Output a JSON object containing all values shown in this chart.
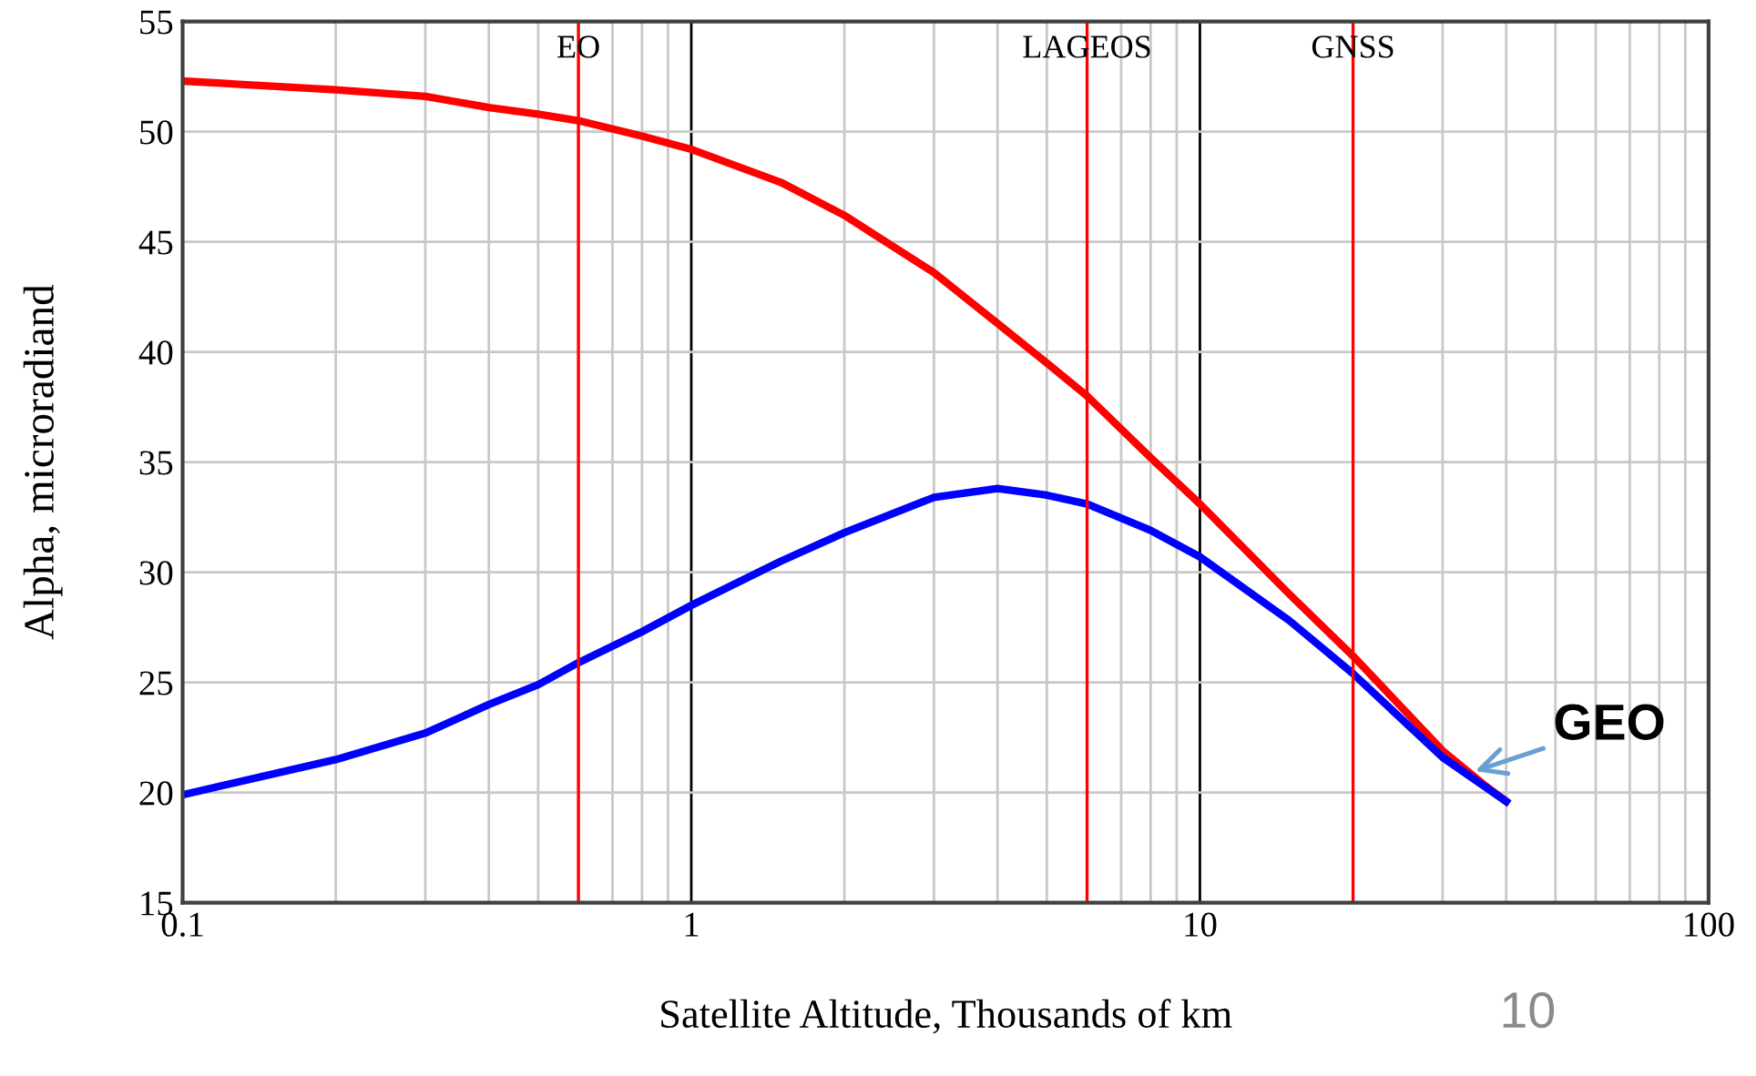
{
  "chart_data": {
    "type": "line",
    "xlabel": "Satellite Altitude, Thousands of km",
    "ylabel": "Alpha, microradiand",
    "log": "x",
    "xlim": [
      0.1,
      100
    ],
    "xticks": [
      0.1,
      1,
      10,
      100
    ],
    "ylim": [
      15,
      55
    ],
    "yticks": [
      15,
      20,
      25,
      30,
      35,
      40,
      45,
      50,
      55
    ],
    "grid": true,
    "legend": false,
    "marker": "none",
    "line_style": "solid",
    "series": [
      {
        "color": "#ff0000",
        "x": [
          0.1,
          0.2,
          0.3,
          0.4,
          0.5,
          0.6,
          0.8,
          1,
          1.5,
          2,
          3,
          4,
          5,
          6,
          8,
          10,
          15,
          20,
          30,
          36,
          40
        ],
        "values": [
          52.3,
          51.9,
          51.6,
          51.1,
          50.8,
          50.5,
          49.8,
          49.2,
          47.7,
          46.2,
          43.6,
          41.3,
          39.5,
          38.0,
          35.2,
          33.1,
          29.0,
          26.2,
          21.9,
          20.4,
          19.6
        ]
      },
      {
        "color": "#0000ff",
        "x": [
          0.1,
          0.2,
          0.3,
          0.4,
          0.5,
          0.6,
          0.8,
          1,
          1.5,
          2,
          3,
          4,
          5,
          6,
          8,
          10,
          15,
          20,
          30,
          40
        ],
        "values": [
          19.9,
          21.5,
          22.7,
          24.0,
          24.9,
          25.9,
          27.3,
          28.5,
          30.5,
          31.8,
          33.4,
          33.8,
          33.5,
          33.1,
          31.9,
          30.7,
          27.8,
          25.4,
          21.6,
          19.6
        ]
      }
    ],
    "ref_lines": [
      {
        "axis": "x",
        "value": 0.6,
        "label": "EO",
        "color": "#ff0000"
      },
      {
        "axis": "x",
        "value": 6,
        "label": "LAGEOS",
        "color": "#ff0000"
      },
      {
        "axis": "x",
        "value": 20,
        "label": "GNSS",
        "color": "#ff0000"
      }
    ],
    "annotations": [
      {
        "text": "GEO",
        "x": 34,
        "y": 20.9
      },
      "10"
    ]
  }
}
